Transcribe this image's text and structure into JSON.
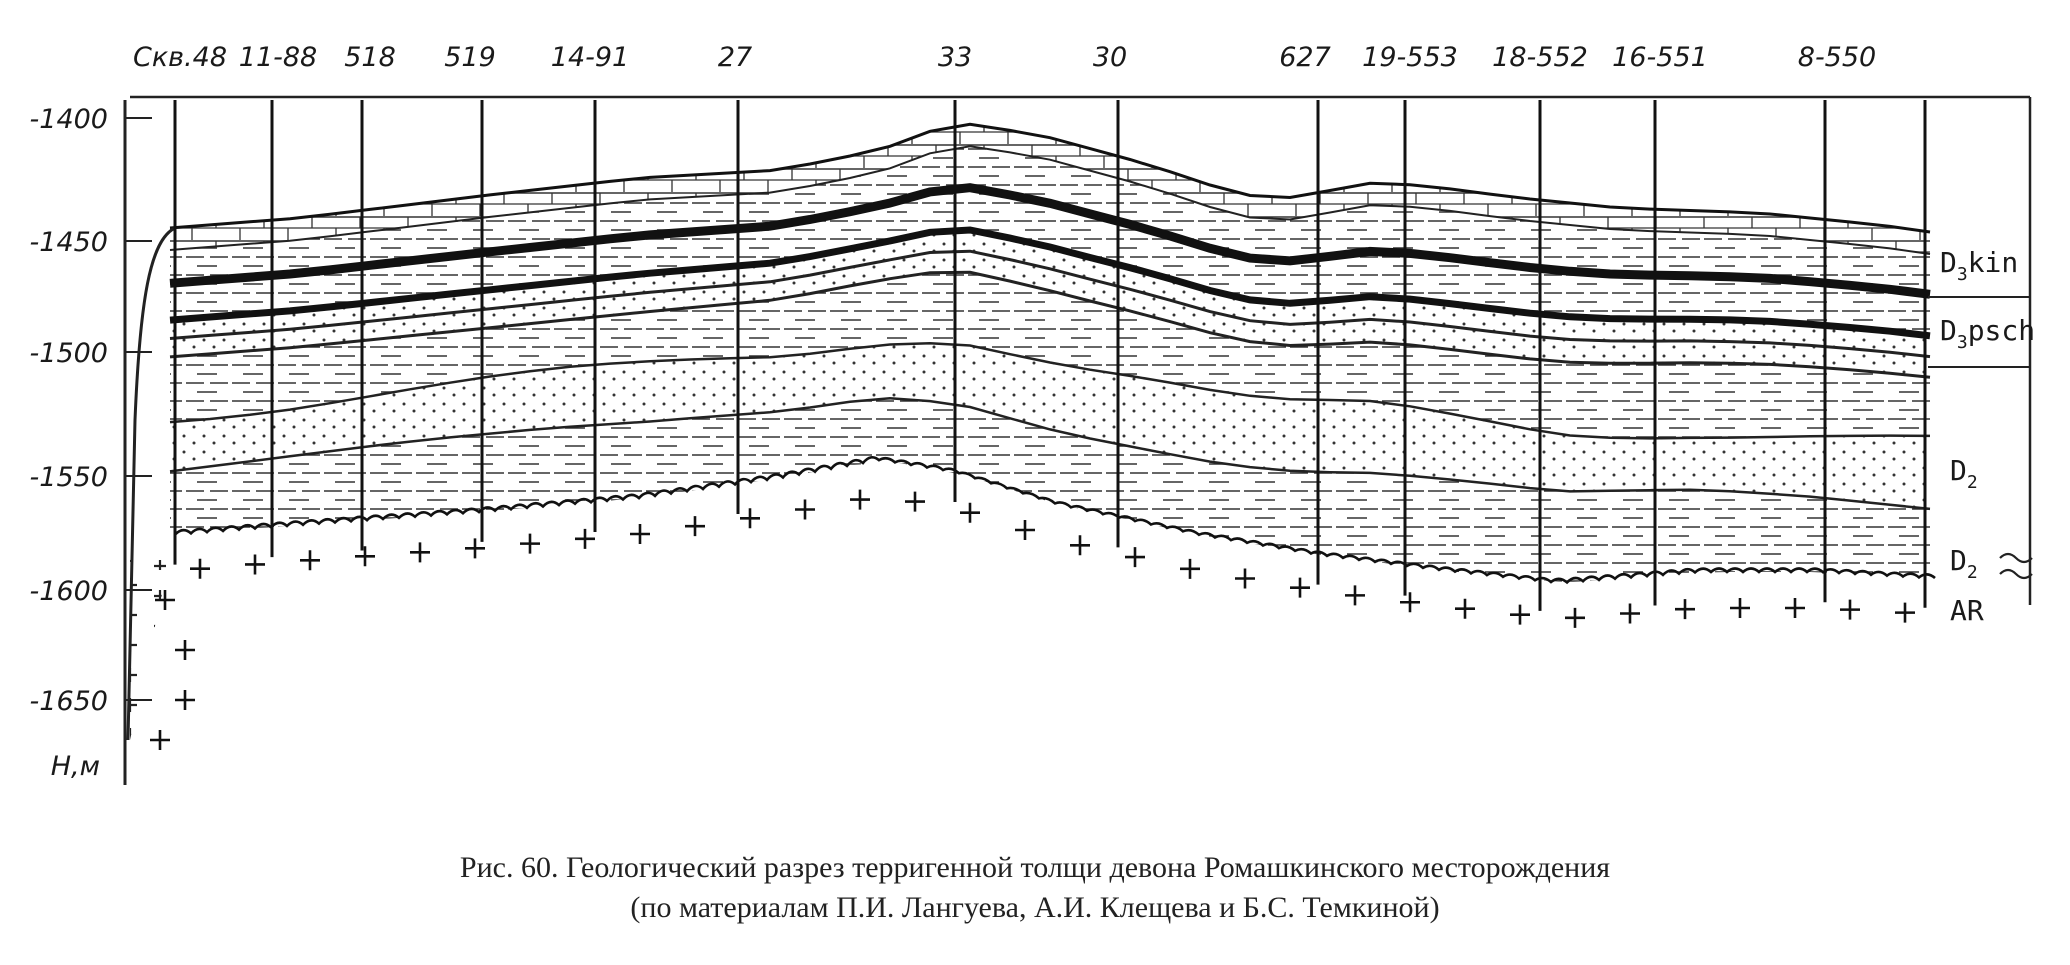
{
  "wells": [
    "Скв.48",
    "11-88",
    "518",
    "519",
    "14-91",
    "27",
    "33",
    "30",
    "627",
    "19-553",
    "18-552",
    "16-551",
    "8-550"
  ],
  "depth_axis": {
    "ticks": [
      "-1400",
      "-1450",
      "-1500",
      "-1550",
      "-1600",
      "-1650"
    ],
    "unit_label": "Н,м"
  },
  "stratigraphy": [
    {
      "symbol": "D",
      "sub": "3",
      "suffix": "kin"
    },
    {
      "symbol": "D",
      "sub": "3",
      "suffix": "psch"
    },
    {
      "symbol": "D",
      "sub": "2",
      "suffix": ""
    },
    {
      "symbol": "D",
      "sub": "2",
      "suffix": ""
    },
    {
      "symbol": "AR",
      "sub": "",
      "suffix": ""
    }
  ],
  "caption": {
    "line1": "Рис. 60. Геологический разрез терригенной толщи девона Ромашкинского месторождения",
    "line2": "(по материалам П.И. Лангуева, А.И. Клещева и Б.С. Темкиной)"
  }
}
